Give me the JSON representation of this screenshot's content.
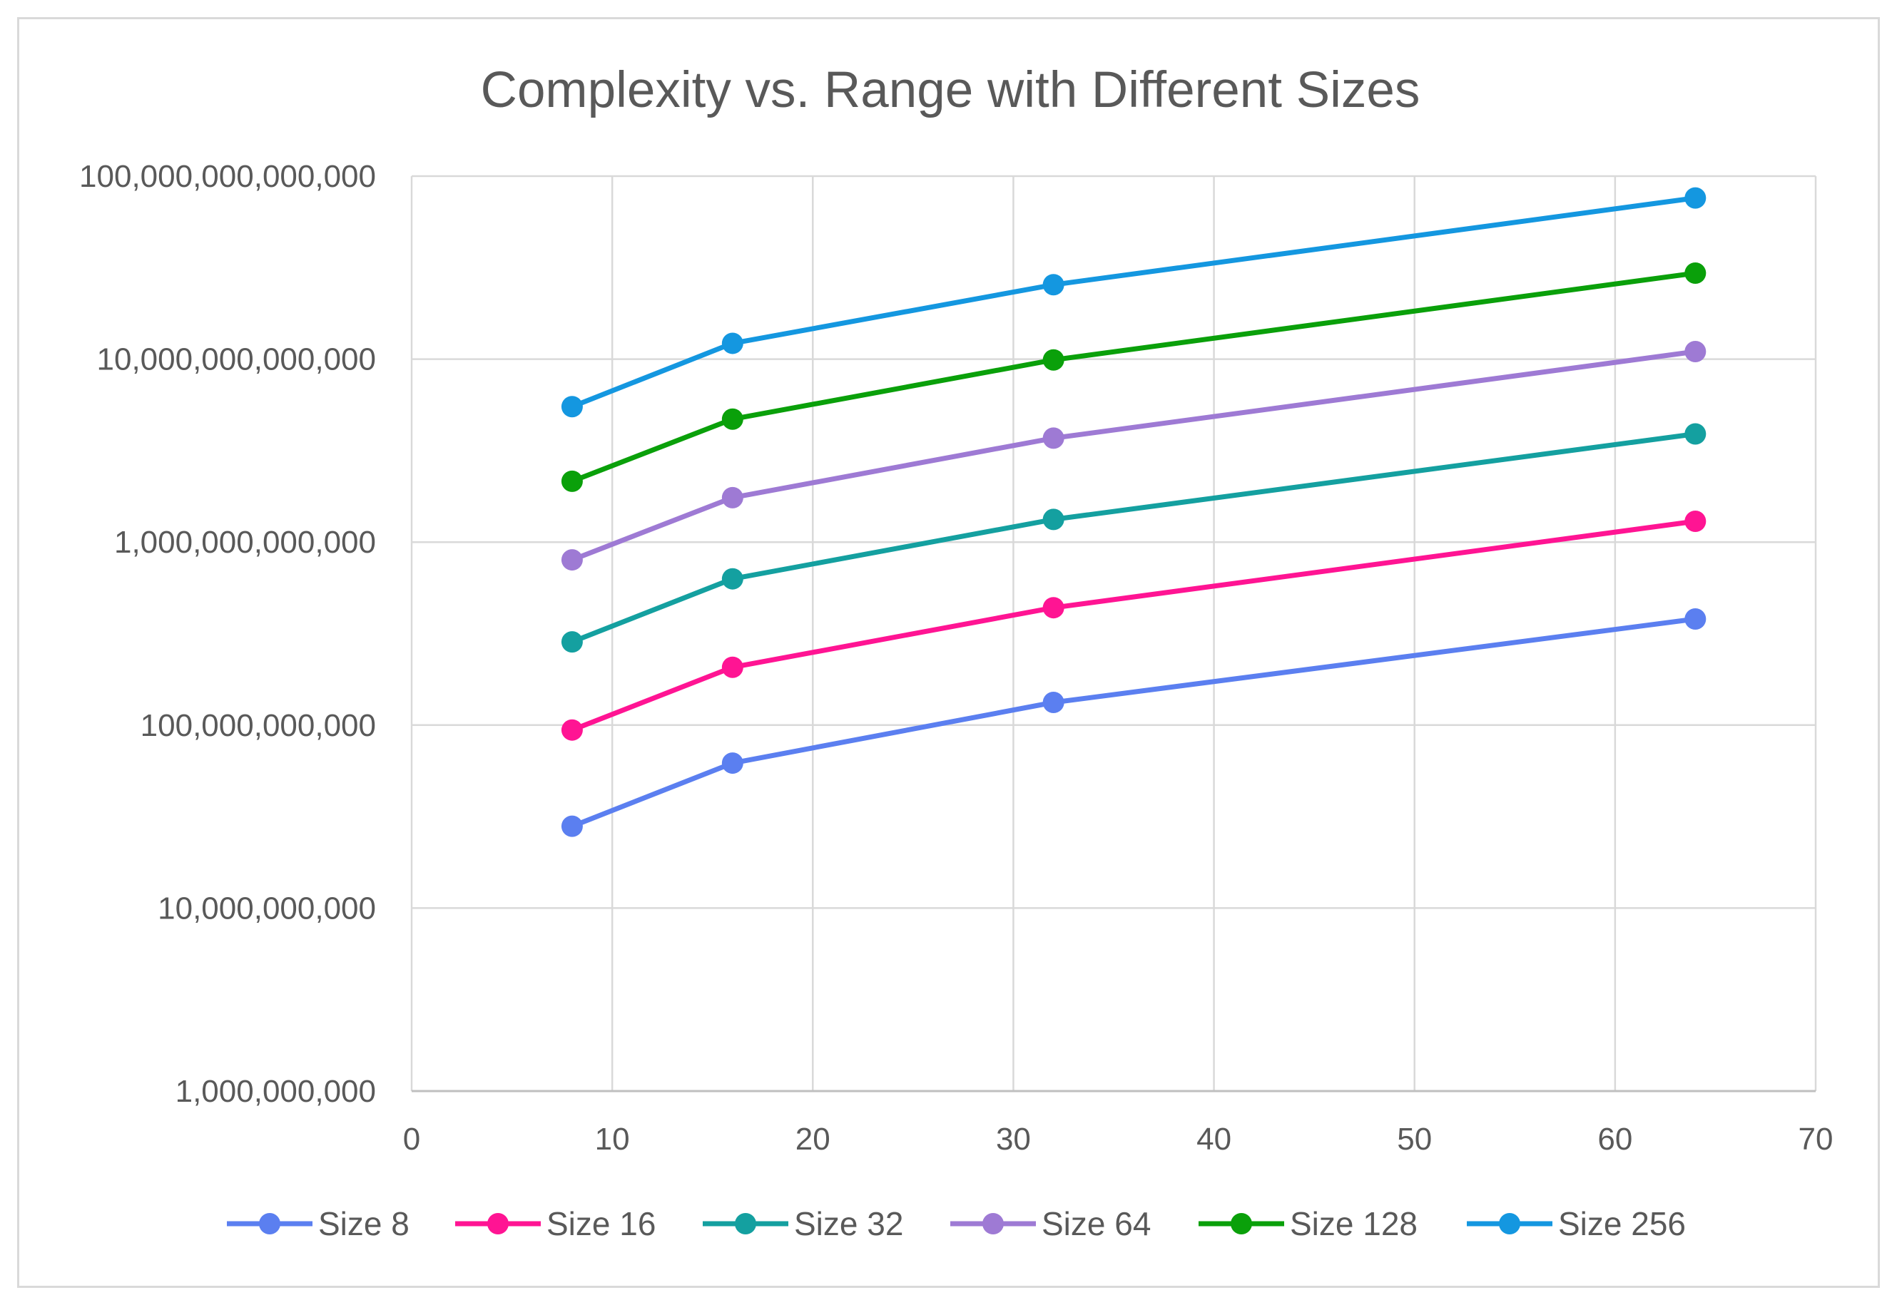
{
  "chart_data": {
    "type": "line",
    "title": "Complexity vs. Range with Different Sizes",
    "xlabel": "",
    "ylabel": "",
    "xlim": [
      0,
      70
    ],
    "ylim": [
      1000000000,
      100000000000000
    ],
    "yscale": "log",
    "grid": true,
    "legend_position": "bottom",
    "x_ticks": [
      {
        "value": 0,
        "label": "0"
      },
      {
        "value": 10,
        "label": "10"
      },
      {
        "value": 20,
        "label": "20"
      },
      {
        "value": 30,
        "label": "30"
      },
      {
        "value": 40,
        "label": "40"
      },
      {
        "value": 50,
        "label": "50"
      },
      {
        "value": 60,
        "label": "60"
      },
      {
        "value": 70,
        "label": "70"
      }
    ],
    "y_ticks": [
      {
        "value": 1000000000,
        "label": "1,000,000,000"
      },
      {
        "value": 10000000000,
        "label": "10,000,000,000"
      },
      {
        "value": 100000000000,
        "label": "100,000,000,000"
      },
      {
        "value": 1000000000000,
        "label": "1,000,000,000,000"
      },
      {
        "value": 10000000000000,
        "label": "10,000,000,000,000"
      },
      {
        "value": 100000000000000,
        "label": "100,000,000,000,000"
      }
    ],
    "x": [
      8,
      16,
      32,
      64
    ],
    "series": [
      {
        "name": "Size 8",
        "color": "#5b7ff0",
        "values": [
          28000000000,
          62000000000,
          133000000000,
          380000000000
        ]
      },
      {
        "name": "Size 16",
        "color": "#ff1493",
        "values": [
          94000000000,
          207000000000,
          438000000000,
          1300000000000
        ]
      },
      {
        "name": "Size 32",
        "color": "#14a0a0",
        "values": [
          285000000000,
          630000000000,
          1330000000000,
          3900000000000
        ]
      },
      {
        "name": "Size 64",
        "color": "#9e7ad4",
        "values": [
          800000000000,
          1750000000000,
          3700000000000,
          11000000000000
        ]
      },
      {
        "name": "Size 128",
        "color": "#0aa00a",
        "values": [
          2150000000000,
          4700000000000,
          9900000000000,
          29500000000000
        ]
      },
      {
        "name": "Size 256",
        "color": "#1497e0",
        "values": [
          5500000000000,
          12200000000000,
          25500000000000,
          76000000000000
        ]
      }
    ]
  }
}
